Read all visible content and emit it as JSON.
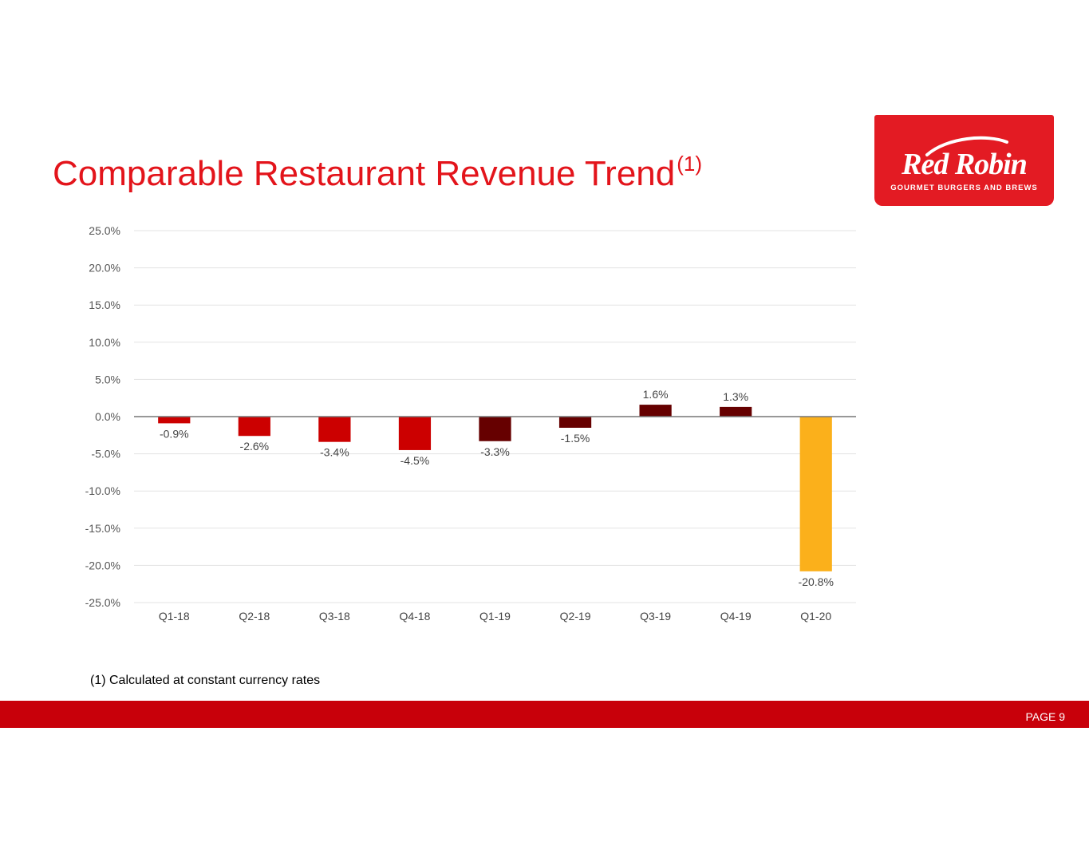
{
  "slide": {
    "title": "Comparable Restaurant Revenue Trend",
    "title_sup": "(1)",
    "footnote": "(1) Calculated at constant currency rates",
    "page_label": "PAGE 9"
  },
  "logo": {
    "name": "Red Robin",
    "tagline": "GOURMET BURGERS AND BREWS"
  },
  "colors": {
    "brand_red": "#e3141b",
    "footer_red": "#c8000a",
    "bar_2018": "#cc0000",
    "bar_2019": "#660000",
    "bar_2020": "#fbb01b"
  },
  "chart_data": {
    "type": "bar",
    "title": "",
    "xlabel": "",
    "ylabel": "",
    "categories": [
      "Q1-18",
      "Q2-18",
      "Q3-18",
      "Q4-18",
      "Q1-19",
      "Q2-19",
      "Q3-19",
      "Q4-19",
      "Q1-20"
    ],
    "values": [
      -0.9,
      -2.6,
      -3.4,
      -4.5,
      -3.3,
      -1.5,
      1.6,
      1.3,
      -20.8
    ],
    "data_labels": [
      "-0.9%",
      "-2.6%",
      "-3.4%",
      "-4.5%",
      "-3.3%",
      "-1.5%",
      "1.6%",
      "1.3%",
      "-20.8%"
    ],
    "bar_color_keys": [
      "bar_2018",
      "bar_2018",
      "bar_2018",
      "bar_2018",
      "bar_2019",
      "bar_2019",
      "bar_2019",
      "bar_2019",
      "bar_2020"
    ],
    "ylim": [
      -25,
      25
    ],
    "yticks": [
      25,
      20,
      15,
      10,
      5,
      0,
      -5,
      -10,
      -15,
      -20,
      -25
    ],
    "ytick_labels": [
      "25.0%",
      "20.0%",
      "15.0%",
      "10.0%",
      "5.0%",
      "0.0%",
      "-5.0%",
      "-10.0%",
      "-15.0%",
      "-20.0%",
      "-25.0%"
    ],
    "grid": true,
    "legend": "none"
  }
}
